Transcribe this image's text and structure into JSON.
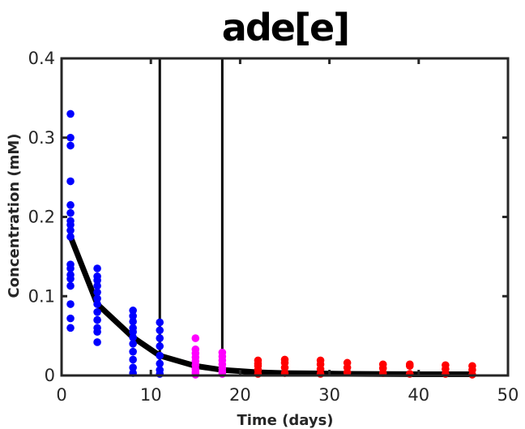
{
  "chart_data": {
    "type": "scatter",
    "title": "ade[e]",
    "xlabel": "Time (days)",
    "ylabel": "Concentration (mM)",
    "xlim": [
      0,
      50
    ],
    "ylim": [
      0,
      0.4
    ],
    "xticks": [
      0,
      10,
      20,
      30,
      40,
      50
    ],
    "yticks": [
      0,
      0.1,
      0.2,
      0.3,
      0.4
    ],
    "xtick_labels": [
      "0",
      "10",
      "20",
      "30",
      "40",
      "50"
    ],
    "ytick_labels": [
      "0",
      "0.1",
      "0.2",
      "0.3",
      "0.4"
    ],
    "grid": false,
    "legend": "none",
    "vertical_lines": [
      11,
      18
    ],
    "series": [
      {
        "color": "#0000ff",
        "points": [
          [
            1,
            0.33
          ],
          [
            1,
            0.3
          ],
          [
            1,
            0.29
          ],
          [
            1,
            0.245
          ],
          [
            1,
            0.215
          ],
          [
            1,
            0.205
          ],
          [
            1,
            0.195
          ],
          [
            1,
            0.19
          ],
          [
            1,
            0.183
          ],
          [
            1,
            0.175
          ],
          [
            1,
            0.14
          ],
          [
            1,
            0.135
          ],
          [
            1,
            0.127
          ],
          [
            1,
            0.122
          ],
          [
            1,
            0.113
          ],
          [
            1,
            0.09
          ],
          [
            1,
            0.072
          ],
          [
            1,
            0.06
          ],
          [
            4,
            0.135
          ],
          [
            4,
            0.125
          ],
          [
            4,
            0.12
          ],
          [
            4,
            0.113
          ],
          [
            4,
            0.105
          ],
          [
            4,
            0.097
          ],
          [
            4,
            0.09
          ],
          [
            4,
            0.08
          ],
          [
            4,
            0.07
          ],
          [
            4,
            0.06
          ],
          [
            4,
            0.055
          ],
          [
            4,
            0.042
          ],
          [
            8,
            0.082
          ],
          [
            8,
            0.075
          ],
          [
            8,
            0.068
          ],
          [
            8,
            0.06
          ],
          [
            8,
            0.055
          ],
          [
            8,
            0.048
          ],
          [
            8,
            0.04
          ],
          [
            8,
            0.03
          ],
          [
            8,
            0.02
          ],
          [
            8,
            0.01
          ],
          [
            8,
            0.003
          ],
          [
            11,
            0.067
          ],
          [
            11,
            0.057
          ],
          [
            11,
            0.047
          ],
          [
            11,
            0.037
          ],
          [
            11,
            0.025
          ],
          [
            11,
            0.015
          ],
          [
            11,
            0.007
          ],
          [
            11,
            0.002
          ]
        ]
      },
      {
        "color": "#ff00ff",
        "points": [
          [
            15,
            0.047
          ],
          [
            15,
            0.033
          ],
          [
            15,
            0.028
          ],
          [
            15,
            0.023
          ],
          [
            15,
            0.018
          ],
          [
            15,
            0.013
          ],
          [
            15,
            0.008
          ],
          [
            15,
            0.004
          ],
          [
            15,
            0.001
          ],
          [
            18,
            0.029
          ],
          [
            18,
            0.024
          ],
          [
            18,
            0.019
          ],
          [
            18,
            0.014
          ],
          [
            18,
            0.009
          ],
          [
            18,
            0.005
          ],
          [
            18,
            0.002
          ]
        ]
      },
      {
        "color": "#ff0000",
        "points": [
          [
            22,
            0.019
          ],
          [
            22,
            0.015
          ],
          [
            22,
            0.012
          ],
          [
            22,
            0.007
          ],
          [
            22,
            0.002
          ],
          [
            25,
            0.02
          ],
          [
            25,
            0.016
          ],
          [
            25,
            0.01
          ],
          [
            25,
            0.003
          ],
          [
            29,
            0.019
          ],
          [
            29,
            0.014
          ],
          [
            29,
            0.008
          ],
          [
            29,
            0.002
          ],
          [
            32,
            0.016
          ],
          [
            32,
            0.01
          ],
          [
            32,
            0.004
          ],
          [
            36,
            0.014
          ],
          [
            36,
            0.009
          ],
          [
            36,
            0.003
          ],
          [
            39,
            0.014
          ],
          [
            39,
            0.012
          ],
          [
            39,
            0.002
          ],
          [
            43,
            0.013
          ],
          [
            43,
            0.008
          ],
          [
            43,
            0.002
          ],
          [
            46,
            0.012
          ],
          [
            46,
            0.007
          ],
          [
            46,
            0.001
          ]
        ]
      }
    ],
    "fit_line": {
      "color": "#000000",
      "x": [
        1,
        4,
        8,
        11,
        15,
        18,
        22,
        25,
        29,
        32,
        36,
        39,
        43,
        46
      ],
      "y": [
        0.175,
        0.09,
        0.048,
        0.025,
        0.012,
        0.007,
        0.004,
        0.003,
        0.0025,
        0.002,
        0.0018,
        0.0016,
        0.0015,
        0.0015
      ]
    }
  }
}
